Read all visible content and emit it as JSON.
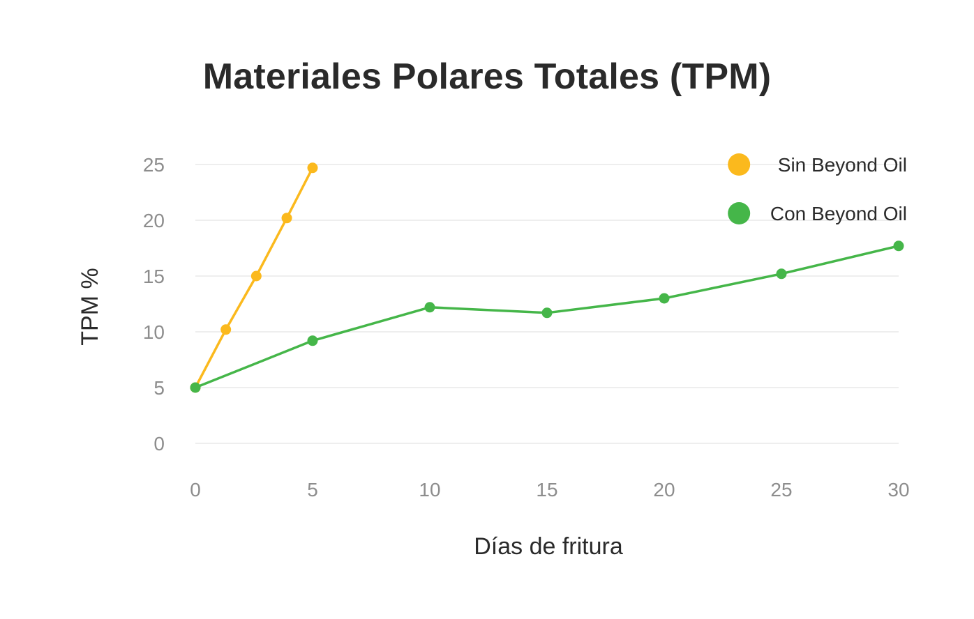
{
  "chart_data": {
    "type": "line",
    "title": "Materiales Polares Totales (TPM)",
    "xlabel": "Días de fritura",
    "ylabel": "TPM %",
    "xlim": [
      0,
      30
    ],
    "ylim": [
      0,
      25
    ],
    "x_ticks": [
      0,
      5,
      10,
      15,
      20,
      25,
      30
    ],
    "y_ticks": [
      0,
      5,
      10,
      15,
      20,
      25
    ],
    "grid": "horizontal",
    "legend_position": "top-right",
    "series": [
      {
        "name": "Sin Beyond Oil",
        "color": "#fbb91d",
        "x": [
          0,
          1.3,
          2.6,
          3.9,
          5
        ],
        "y": [
          5,
          10.2,
          15,
          20.2,
          24.7
        ]
      },
      {
        "name": "Con Beyond Oil",
        "color": "#45b649",
        "x": [
          0,
          5,
          10,
          15,
          20,
          25,
          30
        ],
        "y": [
          5,
          9.2,
          12.2,
          11.7,
          13,
          15.2,
          17.7
        ]
      }
    ]
  }
}
